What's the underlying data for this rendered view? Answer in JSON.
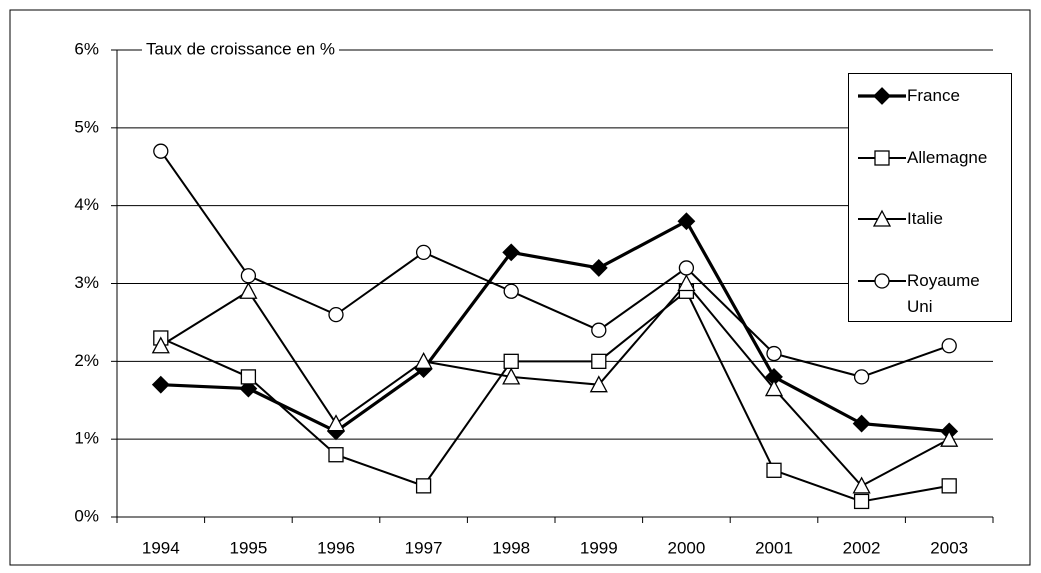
{
  "chart_data": {
    "type": "line",
    "annotation": "Taux de croissance en %",
    "categories": [
      "1994",
      "1995",
      "1996",
      "1997",
      "1998",
      "1999",
      "2000",
      "2001",
      "2002",
      "2003"
    ],
    "series": [
      {
        "name": "France",
        "color": "#000000",
        "marker": "diamond",
        "values": [
          1.7,
          1.65,
          1.1,
          1.9,
          3.4,
          3.2,
          3.8,
          1.8,
          1.2,
          1.1
        ]
      },
      {
        "name": "Allemagne",
        "color": "#000000",
        "marker": "square",
        "values": [
          2.3,
          1.8,
          0.8,
          0.4,
          2.0,
          2.0,
          2.9,
          0.6,
          0.2,
          0.4
        ]
      },
      {
        "name": "Italie",
        "color": "#000000",
        "marker": "triangle",
        "values": [
          2.2,
          2.9,
          1.2,
          2.0,
          1.8,
          1.7,
          3.0,
          1.65,
          0.4,
          1.0
        ]
      },
      {
        "name": "Royaume Uni",
        "color": "#000000",
        "marker": "circle",
        "values": [
          4.7,
          3.1,
          2.6,
          3.4,
          2.9,
          2.4,
          3.2,
          2.1,
          1.8,
          2.2
        ]
      }
    ],
    "ylim": [
      0,
      6
    ],
    "yticks": [
      {
        "value": 0,
        "label": "0%"
      },
      {
        "value": 1,
        "label": "1%"
      },
      {
        "value": 2,
        "label": "2%"
      },
      {
        "value": 3,
        "label": "3%"
      },
      {
        "value": 4,
        "label": "4%"
      },
      {
        "value": 5,
        "label": "5%"
      },
      {
        "value": 6,
        "label": "6%"
      }
    ],
    "grid": true,
    "legend": "upper right"
  }
}
